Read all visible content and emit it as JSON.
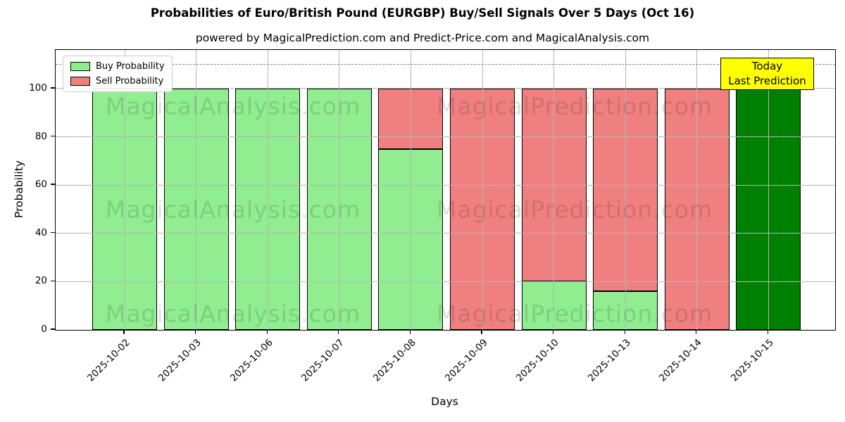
{
  "chart_data": {
    "type": "bar",
    "stacked": true,
    "title": "Probabilities of Euro/British Pound (EURGBP) Buy/Sell Signals Over 5 Days (Oct 16)",
    "subtitle": "powered by MagicalPrediction.com and Predict-Price.com and MagicalAnalysis.com",
    "xlabel": "Days",
    "ylabel": "Probability",
    "categories": [
      "2025-10-02",
      "2025-10-03",
      "2025-10-06",
      "2025-10-07",
      "2025-10-08",
      "2025-10-09",
      "2025-10-10",
      "2025-10-13",
      "2025-10-14",
      "2025-10-15"
    ],
    "series": [
      {
        "name": "Buy Probability",
        "color": "#90EE90",
        "values": [
          100,
          100,
          100,
          100,
          75,
          0,
          20,
          16,
          0,
          100
        ]
      },
      {
        "name": "Sell Probability",
        "color": "#F08080",
        "values": [
          0,
          0,
          0,
          0,
          25,
          100,
          80,
          84,
          100,
          0
        ]
      }
    ],
    "today_index": 9,
    "today_bar_color": "#008000",
    "bar_edge_color": "#000000",
    "yticks": [
      0,
      20,
      40,
      60,
      80,
      100
    ],
    "ylim": [
      0,
      116
    ],
    "dashed_line_y": 110,
    "dashed_line_color": "#7f7f7f",
    "grid": true,
    "legend_position": "upper-left"
  },
  "legend": {
    "items": [
      {
        "label": "Buy Probability",
        "color": "#90EE90"
      },
      {
        "label": "Sell Probability",
        "color": "#F08080"
      }
    ]
  },
  "annotation": {
    "lines": [
      "Today",
      "Last Prediction"
    ],
    "bg": "#FFFF00"
  },
  "watermarks": {
    "left": "MagicalAnalysis.com",
    "right": "MagicalPrediction.com"
  }
}
